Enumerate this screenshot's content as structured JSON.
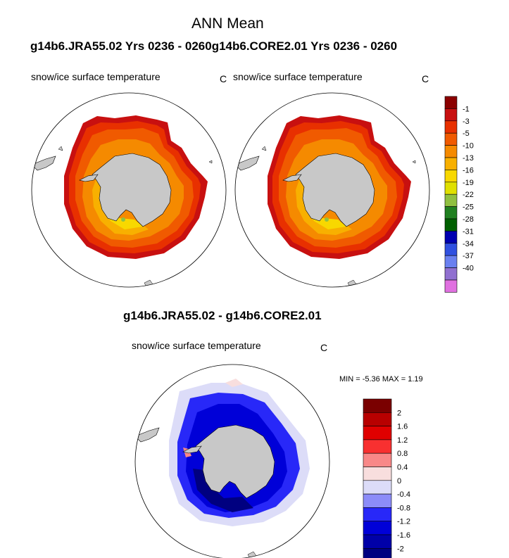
{
  "figure": {
    "title": "ANN Mean",
    "run_title": "g14b6.JRA55.02  Yrs 0236 - 0260g14b6.CORE2.01  Yrs 0236 - 0260",
    "diff_title": "g14b6.JRA55.02 - g14b6.CORE2.01"
  },
  "panels": [
    {
      "variable": "snow/ice surface temperature",
      "units": "C"
    },
    {
      "variable": "snow/ice surface temperature",
      "units": "C"
    },
    {
      "variable": "snow/ice surface temperature",
      "units": "C"
    }
  ],
  "diff_stats": {
    "text": "MIN =  -5.36 MAX =   1.19",
    "min": -5.36,
    "max": 1.19
  },
  "colorbar_top": {
    "labels": [
      "-1",
      "-3",
      "-5",
      "-10",
      "-13",
      "-16",
      "-19",
      "-22",
      "-25",
      "-28",
      "-31",
      "-34",
      "-37",
      "-40"
    ],
    "colors": [
      "#8b0000",
      "#c81010",
      "#e83000",
      "#f05a00",
      "#f58a00",
      "#f8b000",
      "#f8d800",
      "#e0e000",
      "#90c040",
      "#208020",
      "#006000",
      "#0000b0",
      "#3050e0",
      "#6a80f0",
      "#9070d0",
      "#e070e0"
    ]
  },
  "colorbar_diff": {
    "labels": [
      "2",
      "1.6",
      "1.2",
      "0.8",
      "0.4",
      "0",
      "-0.4",
      "-0.8",
      "-1.2",
      "-1.6",
      "-2"
    ],
    "colors": [
      "#7a0000",
      "#b80000",
      "#e00000",
      "#f83030",
      "#f88888",
      "#f8dede",
      "#dcdcf8",
      "#8c8cf8",
      "#2828f8",
      "#0000d8",
      "#0000a8",
      "#000080"
    ]
  }
}
